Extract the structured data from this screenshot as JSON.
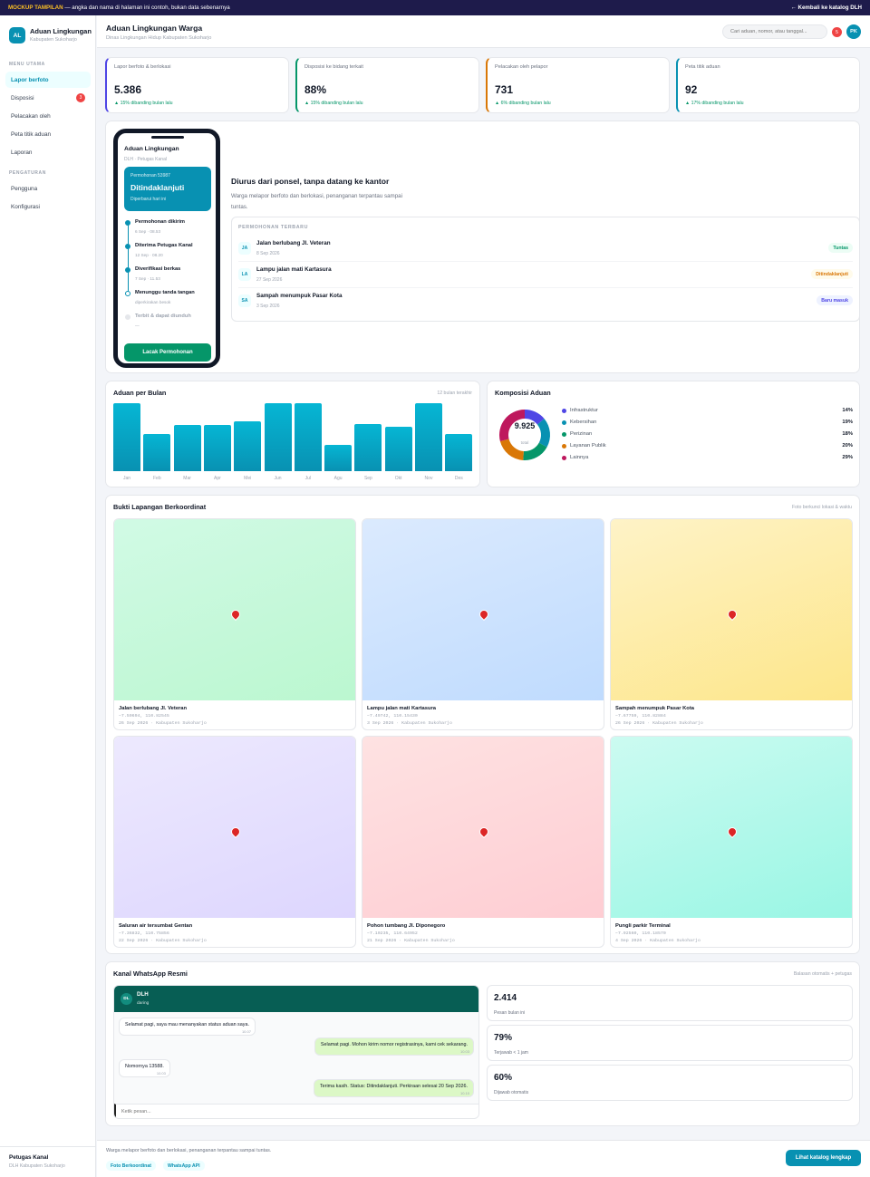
{
  "banner": {
    "tag": "MOCKUP TAMPILAN",
    "text": " — angka dan nama di halaman ini contoh, bukan data sebenarnya",
    "back_link": "← Kembali ke katalog DLH"
  },
  "sidebar": {
    "logo": "AL",
    "title": "Aduan Lingkungan",
    "subtitle": "Kabupaten Sukoharjo",
    "section_main": "MENU UTAMA",
    "items_main": [
      {
        "label": "Lapor berfoto",
        "active": true
      },
      {
        "label": "Disposisi",
        "badge": "3"
      },
      {
        "label": "Pelacakan oleh"
      },
      {
        "label": "Peta titik aduan"
      },
      {
        "label": "Laporan"
      }
    ],
    "section_settings": "PENGATURAN",
    "items_settings": [
      {
        "label": "Pengguna"
      },
      {
        "label": "Konfigurasi"
      }
    ],
    "footer": {
      "name": "Petugas Kanal",
      "sub": "DLH Kabupaten Sukoharjo"
    }
  },
  "header": {
    "title": "Aduan Lingkungan Warga",
    "subtitle": "Dinas Lingkungan Hidup Kabupaten Sukoharjo",
    "search_placeholder": "Cari aduan, nomor, atau tanggal...",
    "notif_count": "5",
    "user_initials": "PK"
  },
  "kpis": [
    {
      "label": "Lapor berfoto & berlokasi",
      "value": "5.386",
      "change": "▲ 15% dibanding bulan lalu",
      "accent": "#4f46e5"
    },
    {
      "label": "Disposisi ke bidang terkait",
      "value": "88%",
      "change": "▲ 15% dibanding bulan lalu",
      "accent": "#059669"
    },
    {
      "label": "Pelacakan oleh pelapor",
      "value": "731",
      "change": "▲ 6% dibanding bulan lalu",
      "accent": "#d97706"
    },
    {
      "label": "Peta titik aduan",
      "value": "92",
      "change": "▲ 17% dibanding bulan lalu",
      "accent": "#0891b2"
    }
  ],
  "phone": {
    "title": "Aduan Lingkungan",
    "subtitle": "DLH · Petugas Kanal",
    "status_number": "Permohonan 53987",
    "status": "Ditindaklanjuti",
    "status_note": "Diperbarui hari ini",
    "timeline": [
      {
        "title": "Permohonan dikirim",
        "date": "6 Sep · 08.53",
        "state": "done"
      },
      {
        "title": "Diterima Petugas Kanal",
        "date": "12 Sep · 08.20",
        "state": "done"
      },
      {
        "title": "Diverifikasi berkas",
        "date": "7 Sep · 11.53",
        "state": "done"
      },
      {
        "title": "Menunggu tanda tangan",
        "date": "diperkirakan besok",
        "state": "current"
      },
      {
        "title": "Terbit & dapat diunduh",
        "date": "—",
        "state": "pending"
      }
    ],
    "button": "Lacak Permohonan"
  },
  "hero": {
    "heading": "Diurus dari ponsel, tanpa datang ke kantor",
    "text": "Warga melapor berfoto dan berlokasi, penanganan terpantau sampai tuntas.",
    "recent_title": "PERMOHONAN TERBARU",
    "recent": [
      {
        "initials": "JA",
        "title": "Jalan berlubang Jl. Veteran",
        "date": "8 Sep 2026",
        "status": "Tuntas",
        "status_bg": "#ecfdf5",
        "status_color": "#059669"
      },
      {
        "initials": "LA",
        "title": "Lampu jalan mati Kartasura",
        "date": "27 Sep 2026",
        "status": "Ditindaklanjuti",
        "status_bg": "#fffbeb",
        "status_color": "#d97706"
      },
      {
        "initials": "SA",
        "title": "Sampah menumpuk Pasar Kota",
        "date": "3 Sep 2026",
        "status": "Baru masuk",
        "status_bg": "#eef2ff",
        "status_color": "#4f46e5"
      }
    ]
  },
  "chart_data": [
    {
      "type": "bar",
      "title": "Aduan per Bulan",
      "note": "12 bulan terakhir",
      "categories": [
        "Jan",
        "Feb",
        "Mar",
        "Apr",
        "Mei",
        "Jun",
        "Jul",
        "Agu",
        "Sep",
        "Okt",
        "Nov",
        "Des"
      ],
      "values": [
        100,
        55,
        68,
        68,
        74,
        100,
        100,
        39,
        69,
        65,
        100,
        55
      ],
      "ylim": [
        0,
        100
      ],
      "grid": false,
      "color": "#0891b2"
    },
    {
      "type": "pie",
      "title": "Komposisi Aduan",
      "center_value": "9.925",
      "center_label": "total",
      "labels": [
        "Infrastruktur",
        "Kebersihan",
        "Perizinan",
        "Layanan Publik",
        "Lainnya"
      ],
      "values": [
        14,
        19,
        18,
        20,
        29
      ],
      "display": [
        "14%",
        "19%",
        "18%",
        "20%",
        "29%"
      ],
      "colors": [
        "#4f46e5",
        "#0891b2",
        "#059669",
        "#d97706",
        "#be185d"
      ],
      "legend": "right"
    }
  ],
  "photos": {
    "title": "Bukti Lapangan Berkoordinat",
    "note": "Foto berkunci lokasi & waktu",
    "items": [
      {
        "title": "Jalan berlubang Jl. Veteran",
        "coords": "−7.50694, 110.82545",
        "date": "26 Sep 2026 · Kabupaten Sukoharjo",
        "from": "#d1fae5",
        "to": "#bbf7d0"
      },
      {
        "title": "Lampu jalan mati Kartasura",
        "coords": "−7.49742, 110.15430",
        "date": "3 Sep 2026 · Kabupaten Sukoharjo",
        "from": "#dbeafe",
        "to": "#bfdbfe"
      },
      {
        "title": "Sampah menumpuk Pasar Kota",
        "coords": "−7.67759, 110.82884",
        "date": "26 Sep 2026 · Kabupaten Sukoharjo",
        "from": "#fef3c7",
        "to": "#fde68a"
      },
      {
        "title": "Saluran air tersumbat Gentan",
        "coords": "−7.36832, 110.75856",
        "date": "22 Sep 2026 · Kabupaten Sukoharjo",
        "from": "#ede9fe",
        "to": "#ddd6fe"
      },
      {
        "title": "Pohon tumbang Jl. Diponegoro",
        "coords": "−7.10235, 110.64952",
        "date": "21 Sep 2026 · Kabupaten Sukoharjo",
        "from": "#fee2e2",
        "to": "#fecdd3"
      },
      {
        "title": "Pungli parkir Terminal",
        "coords": "−7.92560, 110.18570",
        "date": "4 Sep 2026 · Kabupaten Sukoharjo",
        "from": "#ccfbf1",
        "to": "#99f6e4"
      }
    ]
  },
  "whatsapp": {
    "title": "Kanal WhatsApp Resmi",
    "note": "Balasan otomatis + petugas",
    "contact_initials": "DL",
    "contact_name": "DLH",
    "contact_status": "daring",
    "messages": [
      {
        "dir": "in",
        "text": "Selamat pagi, saya mau menanyakan status aduan saya.",
        "time": "10.07"
      },
      {
        "dir": "out",
        "text": "Selamat pagi. Mohon kirim nomor registrasinya, kami cek sekarang.",
        "time": "10.03"
      },
      {
        "dir": "in",
        "text": "Nomornya 13588.",
        "time": "10.03"
      },
      {
        "dir": "out",
        "text": "Terima kasih. Status: Ditindaklanjuti. Perkiraan selesai 20 Sep 2026.",
        "time": "10.10"
      }
    ],
    "input_placeholder": "Ketik pesan...",
    "stats": [
      {
        "value": "2.414",
        "label": "Pesan bulan ini"
      },
      {
        "value": "79%",
        "label": "Terjawab < 1 jam"
      },
      {
        "value": "60%",
        "label": "Dijawab otomatis"
      }
    ]
  },
  "footer": {
    "text": "Warga melapor berfoto dan berlokasi, penanganan terpantau sampai tuntas.",
    "tags": [
      "Foto Berkoordinat",
      "WhatsApp API"
    ],
    "button": "Lihat katalog lengkap"
  }
}
